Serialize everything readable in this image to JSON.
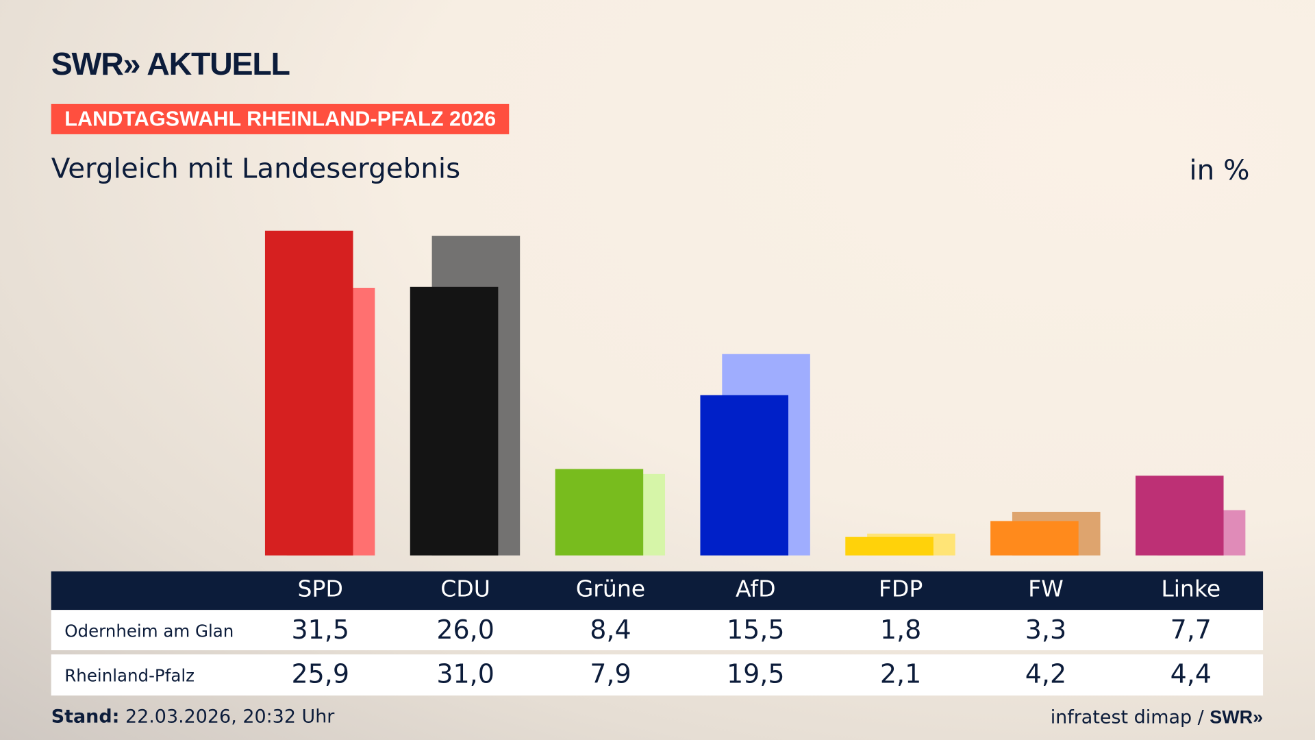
{
  "header": {
    "logo": "SWR» AKTUELL",
    "tag": "LANDTAGSWAHL RHEINLAND-PFALZ 2026",
    "subtitle": "Vergleich mit Landesergebnis",
    "unit": "in %"
  },
  "chart_data": {
    "type": "bar",
    "categories": [
      "SPD",
      "CDU",
      "Grüne",
      "AfD",
      "FDP",
      "FW",
      "Linke"
    ],
    "series": [
      {
        "name": "Odernheim am Glan",
        "values": [
          31.5,
          26.0,
          8.4,
          15.5,
          1.8,
          3.3,
          7.7
        ],
        "labels": [
          "31,5",
          "26,0",
          "8,4",
          "15,5",
          "1,8",
          "3,3",
          "7,7"
        ]
      },
      {
        "name": "Rheinland-Pfalz",
        "values": [
          25.9,
          31.0,
          7.9,
          19.5,
          2.1,
          4.2,
          4.4
        ],
        "labels": [
          "25,9",
          "31,0",
          "7,9",
          "19,5",
          "2,1",
          "4,2",
          "4,4"
        ]
      }
    ],
    "colors_primary": [
      "#d62020",
      "#141414",
      "#78bc1e",
      "#0020c8",
      "#ffd20a",
      "#ff8a1c",
      "#bd3075"
    ],
    "colors_secondary": [
      "#ff7070",
      "#737271",
      "#d6f5a8",
      "#9fadfe",
      "#ffe476",
      "#dea46e",
      "#e08bb8"
    ],
    "ylim": [
      0,
      32
    ],
    "grid": false
  },
  "footer": {
    "stand_label": "Stand:",
    "stand_value": " 22.03.2026, 20:32 Uhr",
    "source": "infratest dimap / ",
    "source_logo": "SWR»"
  }
}
